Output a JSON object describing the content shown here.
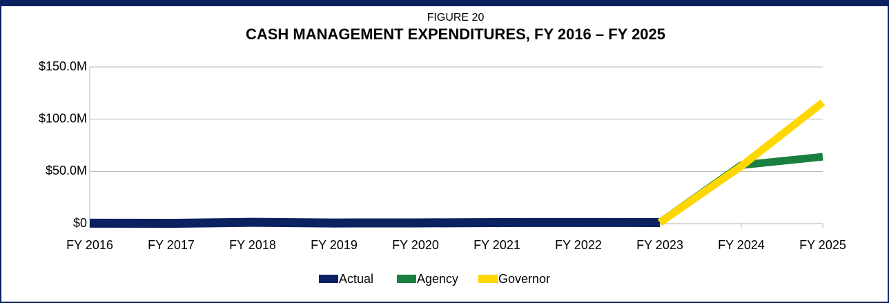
{
  "chart_data": {
    "type": "line",
    "subtitle": "FIGURE 20",
    "title": "CASH MANAGEMENT EXPENDITURES, FY 2016 – FY 2025",
    "categories": [
      "FY 2016",
      "FY 2017",
      "FY 2018",
      "FY 2019",
      "FY 2020",
      "FY 2021",
      "FY 2022",
      "FY 2023",
      "FY 2024",
      "FY 2025"
    ],
    "series": [
      {
        "name": "Actual",
        "color": "#0b2160",
        "values": [
          0.4,
          0.3,
          1.2,
          0.6,
          0.7,
          1.0,
          1.1,
          1.0,
          null,
          null
        ]
      },
      {
        "name": "Agency",
        "color": "#1a8040",
        "values": [
          null,
          null,
          null,
          null,
          null,
          null,
          null,
          1.0,
          56,
          64
        ]
      },
      {
        "name": "Governor",
        "color": "#ffd700",
        "values": [
          null,
          null,
          null,
          null,
          null,
          null,
          null,
          1.0,
          55,
          116
        ]
      }
    ],
    "ylim": [
      0,
      150
    ],
    "yticks": [
      {
        "value": 0,
        "label": "$0"
      },
      {
        "value": 50,
        "label": "$50.0M"
      },
      {
        "value": 100,
        "label": "$100.0M"
      },
      {
        "value": 150,
        "label": "$150.0M"
      }
    ],
    "grid": true,
    "legend": "bottom"
  }
}
